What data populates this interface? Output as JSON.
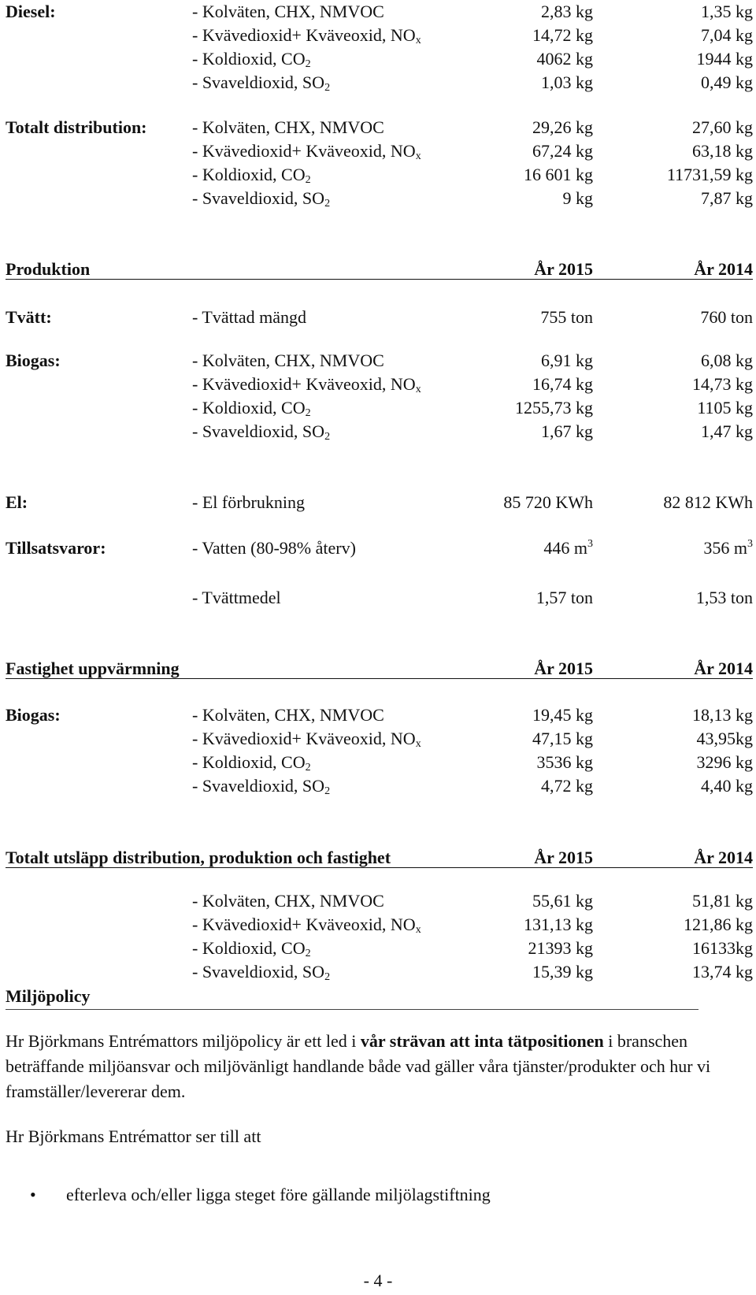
{
  "diesel": {
    "label": "Diesel:",
    "rows": [
      {
        "item": "- Kolväten, CHX, NMVOC",
        "sub": "",
        "v1": "2,83 kg",
        "v2": "1,35 kg"
      },
      {
        "item": "- Kvävedioxid+ Kväveoxid, NO",
        "sub": "x",
        "v1": "14,72 kg",
        "v2": "7,04 kg"
      },
      {
        "item": "- Koldioxid, CO",
        "sub": "2",
        "v1": "4062 kg",
        "v2": "1944 kg"
      },
      {
        "item": "- Svaveldioxid, SO",
        "sub": "2",
        "v1": "1,03 kg",
        "v2": "0,49 kg"
      }
    ]
  },
  "totalt_distribution": {
    "label": "Totalt distribution:",
    "rows": [
      {
        "item": "- Kolväten, CHX, NMVOC",
        "sub": "",
        "v1": "29,26 kg",
        "v2": "27,60 kg"
      },
      {
        "item": "- Kvävedioxid+ Kväveoxid, NO",
        "sub": "x",
        "v1": "67,24 kg",
        "v2": "63,18 kg"
      },
      {
        "item": "- Koldioxid, CO",
        "sub": "2",
        "v1": "16 601 kg",
        "v2": "11731,59 kg"
      },
      {
        "item": "- Svaveldioxid, SO",
        "sub": "2",
        "v1": "9 kg",
        "v2": "7,87 kg"
      }
    ]
  },
  "produktion": {
    "heading": "Produktion",
    "year1": "År 2015",
    "year2": "År 2014",
    "tvatt": {
      "label": "Tvätt:",
      "item": "- Tvättad mängd",
      "v1": "755 ton",
      "v2": "760 ton"
    },
    "biogas": {
      "label": "Biogas:",
      "rows": [
        {
          "item": "- Kolväten, CHX, NMVOC",
          "sub": "",
          "v1": "6,91 kg",
          "v2": "6,08 kg"
        },
        {
          "item": "- Kvävedioxid+ Kväveoxid, NO",
          "sub": "x",
          "v1": "16,74 kg",
          "v2": "14,73 kg"
        },
        {
          "item": "- Koldioxid, CO",
          "sub": "2",
          "v1": "1255,73 kg",
          "v2": "1105 kg"
        },
        {
          "item": "- Svaveldioxid, SO",
          "sub": "2",
          "v1": "1,67 kg",
          "v2": "1,47 kg"
        }
      ]
    },
    "el": {
      "label": "El:",
      "item": "- El förbrukning",
      "v1": "85 720 KWh",
      "v2": "82 812 KWh"
    },
    "tillsatsvaror": {
      "label": "Tillsatsvaror:",
      "vatten": {
        "item": "- Vatten (80-98% återv)",
        "v1": "446 m",
        "v1_sup": "3",
        "v2": "356 m",
        "v2_sup": "3"
      },
      "tvattmedel": {
        "item": "- Tvättmedel",
        "v1": "1,57 ton",
        "v2": "1,53 ton"
      }
    }
  },
  "fastighet": {
    "heading": "Fastighet uppvärmning",
    "year1": "År 2015",
    "year2": "År 2014",
    "biogas": {
      "label": "Biogas:",
      "rows": [
        {
          "item": "- Kolväten, CHX, NMVOC",
          "sub": "",
          "v1": "19,45 kg",
          "v2": "18,13 kg"
        },
        {
          "item": "- Kvävedioxid+ Kväveoxid, NO",
          "sub": "x",
          "v1": "47,15 kg",
          "v2": "43,95kg"
        },
        {
          "item": "- Koldioxid, CO",
          "sub": "2",
          "v1": "3536 kg",
          "v2": "3296 kg"
        },
        {
          "item": "- Svaveldioxid, SO",
          "sub": "2",
          "v1": "4,72 kg",
          "v2": "4,40 kg"
        }
      ]
    }
  },
  "totalt_utslapp": {
    "heading": "Totalt utsläpp distribution, produktion och fastighet",
    "year1": "År 2015",
    "year2": "År 2014",
    "rows": [
      {
        "item": "- Kolväten, CHX, NMVOC",
        "sub": "",
        "v1": "55,61 kg",
        "v2": "51,81 kg"
      },
      {
        "item": "- Kvävedioxid+ Kväveoxid, NO",
        "sub": "x",
        "v1": "131,13 kg",
        "v2": "121,86 kg"
      },
      {
        "item": "- Koldioxid, CO",
        "sub": "2",
        "v1": "21393 kg",
        "v2": "16133kg"
      },
      {
        "item": "- Svaveldioxid, SO",
        "sub": "2",
        "v1": "15,39 kg",
        "v2": "13,74 kg"
      }
    ]
  },
  "miljopolicy": {
    "heading": "Miljöpolicy",
    "para1_a": "Hr Björkmans Entrémattors miljöpolicy är ett led i ",
    "para1_bold": "vår strävan att inta tätpositionen",
    "para1_b": " i branschen beträffande miljöansvar och miljövänligt handlande både vad gäller våra tjänster/produkter och hur vi framställer/levererar dem.",
    "para2": "Hr Björkmans Entrémattor ser till att",
    "bullet1": "efterleva och/eller ligga steget före gällande miljölagstiftning"
  },
  "page_number": "- 4 -"
}
